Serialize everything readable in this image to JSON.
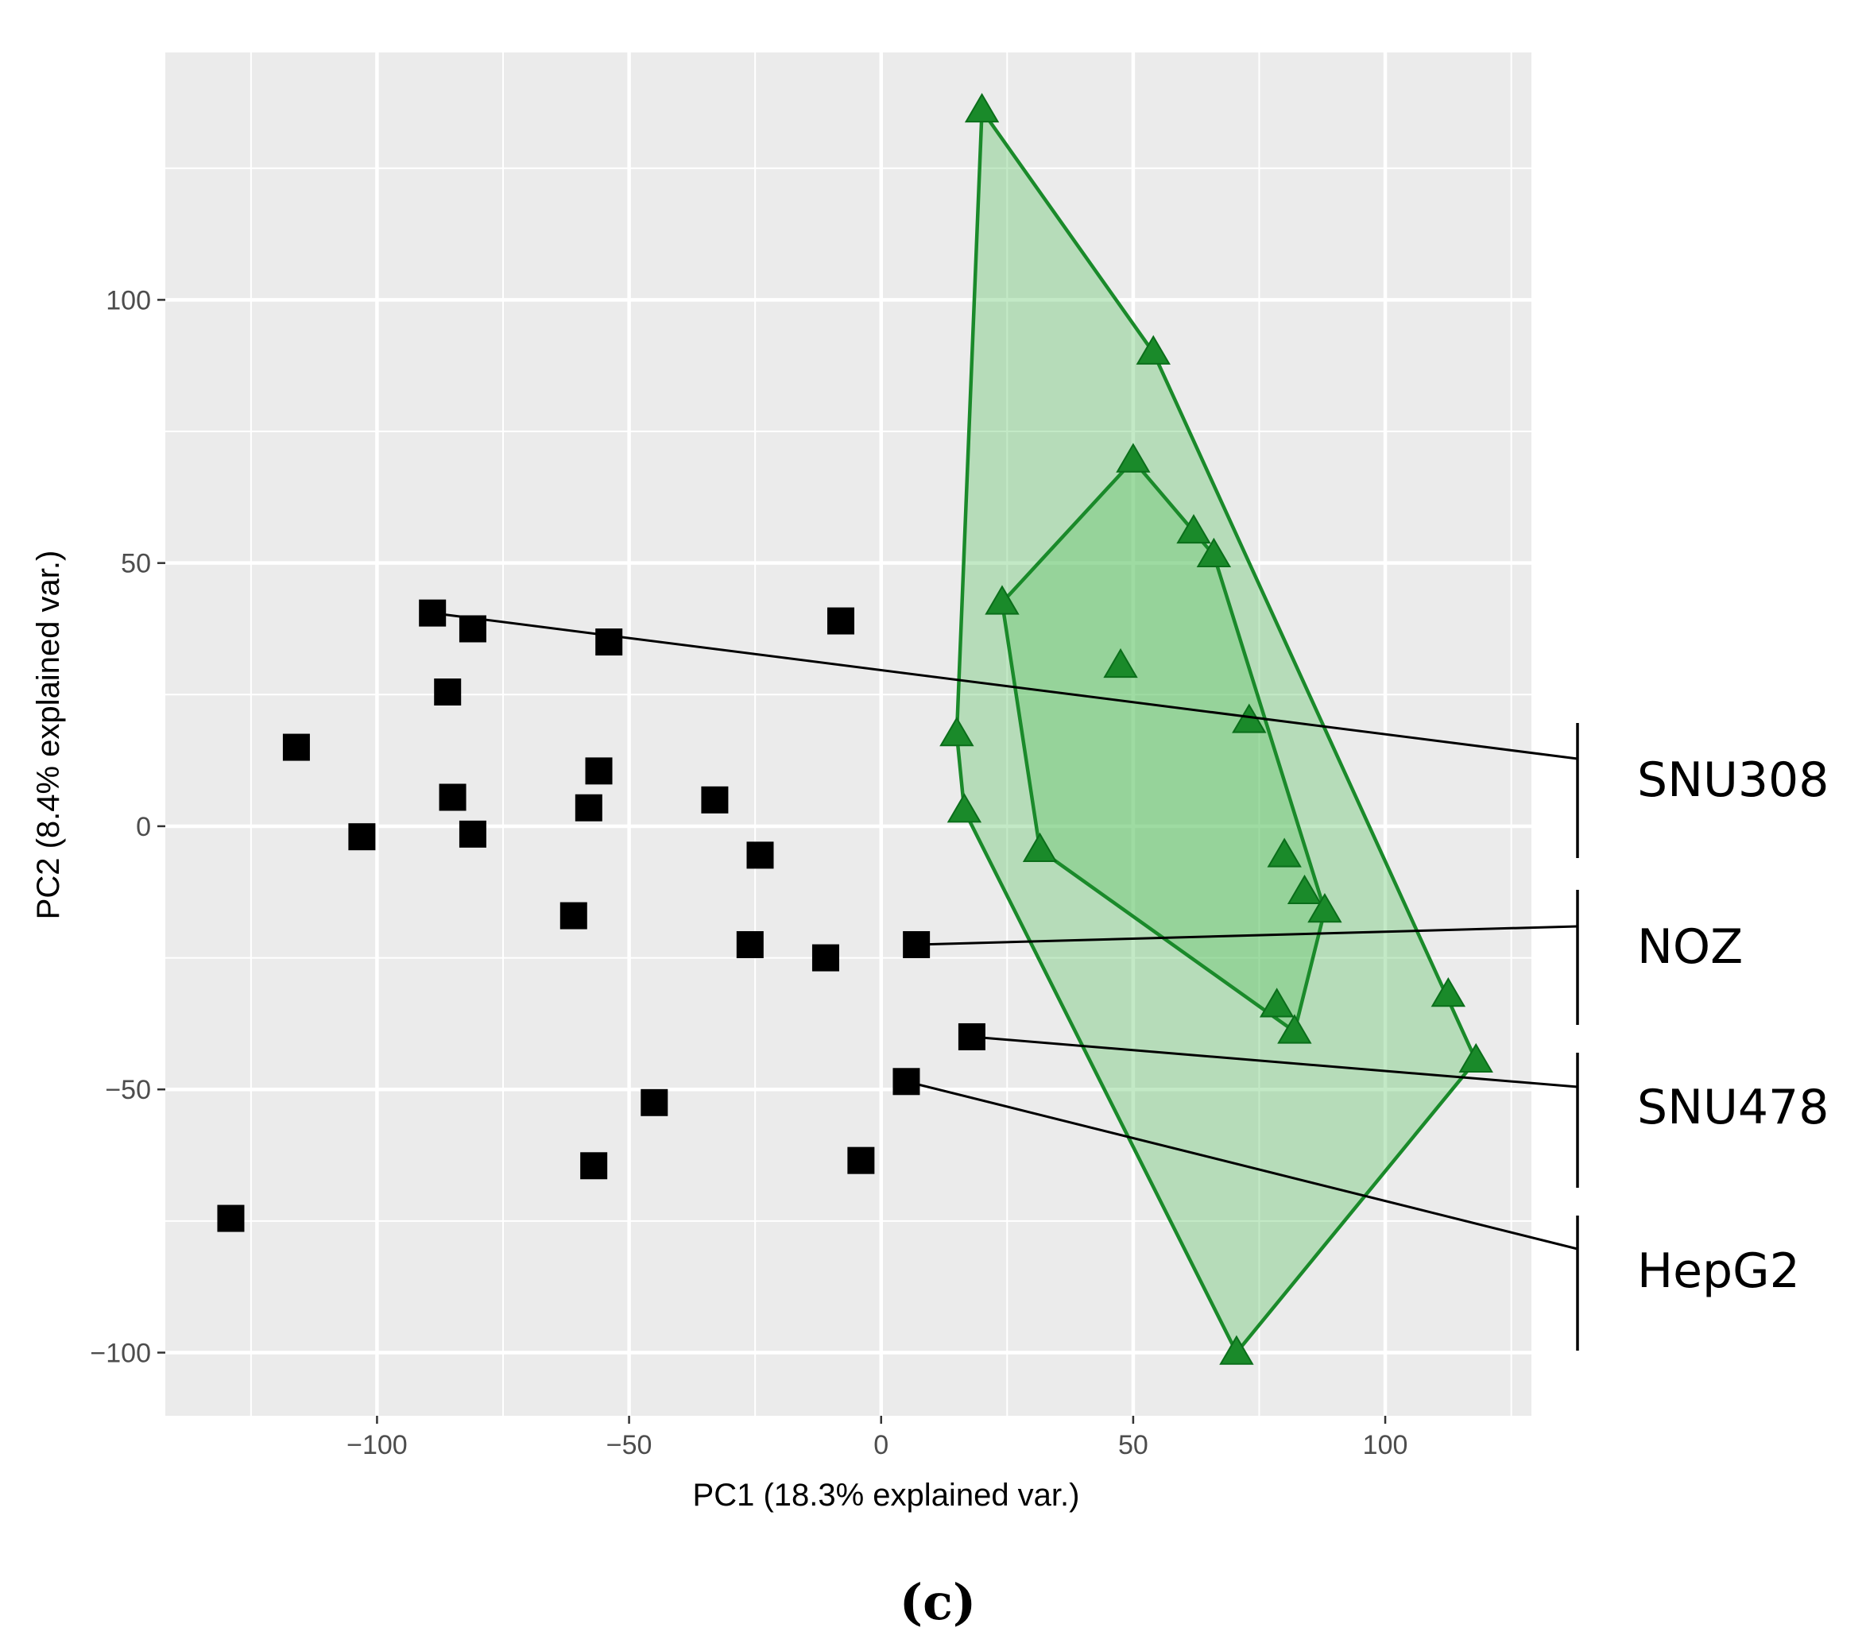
{
  "chart_data": {
    "type": "scatter",
    "title": "",
    "caption": "(c)",
    "xlabel": "PC1 (18.3% explained var.)",
    "ylabel": "PC2 (8.4% explained var.)",
    "xlim": [
      -142,
      129
    ],
    "ylim": [
      -112,
      147
    ],
    "x_ticks": [
      -100,
      -50,
      0,
      50,
      100
    ],
    "x_tick_labels": [
      "−100",
      "−50",
      "0",
      "50",
      "100"
    ],
    "y_ticks": [
      -100,
      -50,
      0,
      50,
      100
    ],
    "y_tick_labels": [
      "−100",
      "−50",
      "0",
      "50",
      "100"
    ],
    "grid": true,
    "colors": {
      "panel": "#ebebeb",
      "grid": "#ffffff",
      "square": "#000000",
      "triangle": "#1a8a2a",
      "triangle_edge": "#0a6e1a",
      "hull": "#1a8a2a",
      "hull_fill": "#62c46a"
    },
    "series": [
      {
        "name": "black squares",
        "marker": "square",
        "points": [
          [
            -89,
            40.5
          ],
          [
            -81,
            37.5
          ],
          [
            -54,
            35
          ],
          [
            -8,
            39
          ],
          [
            -86,
            25.5
          ],
          [
            -116,
            15
          ],
          [
            -56,
            10.5
          ],
          [
            -85,
            5.5
          ],
          [
            -58,
            3.5
          ],
          [
            -33,
            5
          ],
          [
            -103,
            -2
          ],
          [
            -81,
            -1.5
          ],
          [
            -24,
            -5.5
          ],
          [
            -61,
            -17
          ],
          [
            -26,
            -22.5
          ],
          [
            -11,
            -25
          ],
          [
            7,
            -22.5
          ],
          [
            18,
            -40
          ],
          [
            5,
            -48.5
          ],
          [
            -45,
            -52.5
          ],
          [
            -57,
            -64.5
          ],
          [
            -4,
            -63.5
          ],
          [
            -129,
            -74.5
          ]
        ]
      },
      {
        "name": "green triangles",
        "marker": "triangle",
        "points": [
          [
            20,
            136
          ],
          [
            54,
            90
          ],
          [
            50,
            69.5
          ],
          [
            62,
            56
          ],
          [
            66,
            51.5
          ],
          [
            24,
            42.5
          ],
          [
            47.5,
            30.5
          ],
          [
            73,
            20
          ],
          [
            15,
            17.5
          ],
          [
            16.5,
            3
          ],
          [
            31.5,
            -4.5
          ],
          [
            80,
            -5.5
          ],
          [
            84,
            -12.5
          ],
          [
            88,
            -16
          ],
          [
            78.5,
            -34
          ],
          [
            82,
            -39
          ],
          [
            112.5,
            -32
          ],
          [
            118,
            -44.5
          ],
          [
            70.5,
            -100
          ]
        ]
      }
    ],
    "hulls": [
      {
        "name": "outer hull",
        "points": [
          [
            20,
            136
          ],
          [
            54,
            90
          ],
          [
            118,
            -44.5
          ],
          [
            70.5,
            -100
          ],
          [
            16.5,
            3
          ],
          [
            15,
            17.5
          ]
        ]
      },
      {
        "name": "inner hull",
        "points": [
          [
            50,
            69.5
          ],
          [
            62,
            56
          ],
          [
            66,
            51.5
          ],
          [
            88,
            -16
          ],
          [
            82,
            -39
          ],
          [
            31.5,
            -4.5
          ],
          [
            24,
            42.5
          ]
        ]
      }
    ],
    "annotations": [
      {
        "label": "SNU308",
        "from": [
          -89,
          40.5
        ]
      },
      {
        "label": "NOZ",
        "from": [
          7,
          -22.5
        ]
      },
      {
        "label": "SNU478",
        "from": [
          18,
          -40
        ]
      },
      {
        "label": "HepG2",
        "from": [
          5,
          -48.5
        ]
      }
    ]
  }
}
